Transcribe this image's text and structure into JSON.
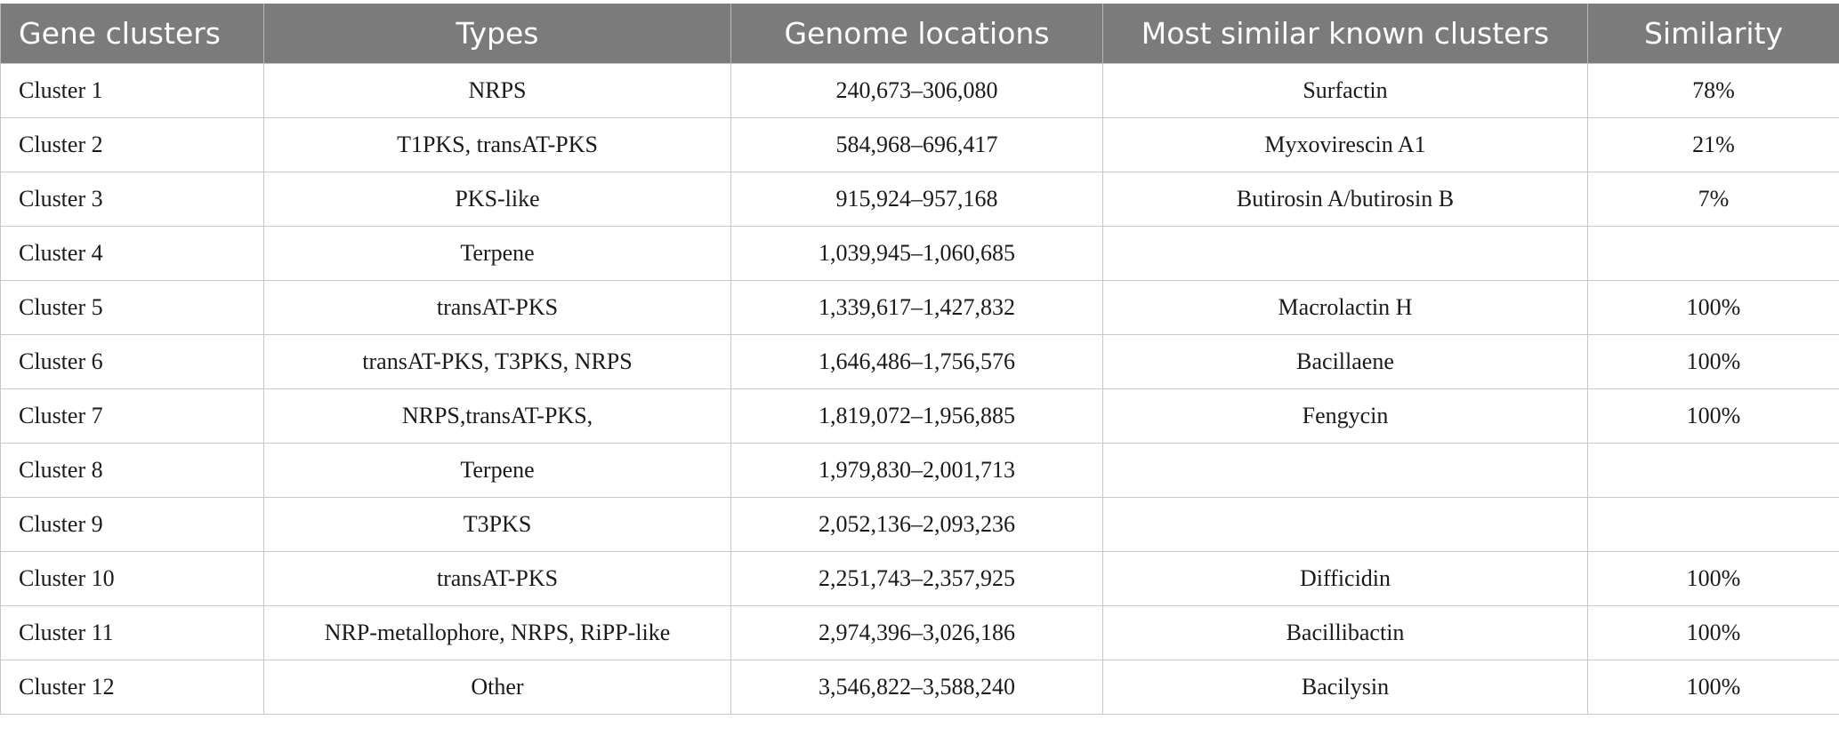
{
  "table": {
    "headers": [
      "Gene clusters",
      "Types",
      "Genome locations",
      "Most similar known clusters",
      "Similarity"
    ],
    "rows": [
      [
        "Cluster 1",
        "NRPS",
        "240,673–306,080",
        "Surfactin",
        "78%"
      ],
      [
        "Cluster 2",
        "T1PKS, transAT-PKS",
        "584,968–696,417",
        "Myxovirescin A1",
        "21%"
      ],
      [
        "Cluster 3",
        "PKS-like",
        "915,924–957,168",
        "Butirosin A/butirosin B",
        "7%"
      ],
      [
        "Cluster 4",
        "Terpene",
        "1,039,945–1,060,685",
        "",
        ""
      ],
      [
        "Cluster 5",
        "transAT-PKS",
        "1,339,617–1,427,832",
        "Macrolactin H",
        "100%"
      ],
      [
        "Cluster 6",
        "transAT-PKS, T3PKS, NRPS",
        "1,646,486–1,756,576",
        "Bacillaene",
        "100%"
      ],
      [
        "Cluster 7",
        "NRPS,transAT-PKS,",
        "1,819,072–1,956,885",
        "Fengycin",
        "100%"
      ],
      [
        "Cluster 8",
        "Terpene",
        "1,979,830–2,001,713",
        "",
        ""
      ],
      [
        "Cluster 9",
        "T3PKS",
        "2,052,136–2,093,236",
        "",
        ""
      ],
      [
        "Cluster 10",
        "transAT-PKS",
        "2,251,743–2,357,925",
        "Difficidin",
        "100%"
      ],
      [
        "Cluster 11",
        "NRP-metallophore, NRPS, RiPP-like",
        "2,974,396–3,026,186",
        "Bacillibactin",
        "100%"
      ],
      [
        "Cluster 12",
        "Other",
        "3,546,822–3,588,240",
        "Bacilysin",
        "100%"
      ]
    ]
  }
}
